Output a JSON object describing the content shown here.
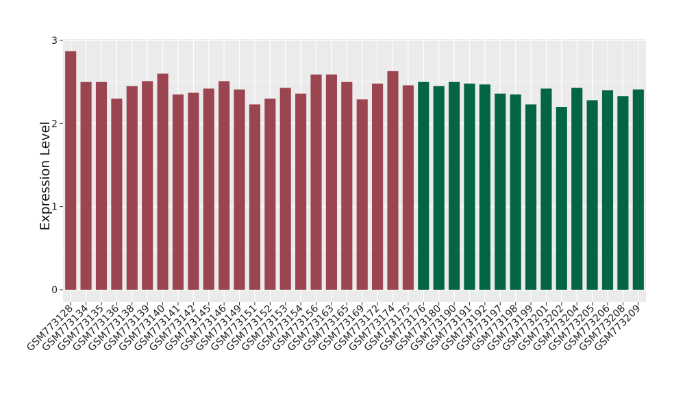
{
  "chart_data": {
    "type": "bar",
    "title": "",
    "xlabel": "",
    "ylabel": "Expression Level",
    "ylim": [
      0,
      3
    ],
    "yticks": [
      "0",
      "1",
      "2",
      "3"
    ],
    "grid": true,
    "categories": [
      "GSM773128",
      "GSM773134",
      "GSM773135",
      "GSM773136",
      "GSM773138",
      "GSM773139",
      "GSM773140",
      "GSM773141",
      "GSM773142",
      "GSM773145",
      "GSM773146",
      "GSM773149",
      "GSM773151",
      "GSM773152",
      "GSM773153",
      "GSM773154",
      "GSM773156",
      "GSM773163",
      "GSM773165",
      "GSM773169",
      "GSM773172",
      "GSM773174",
      "GSM773175",
      "GSM773176",
      "GSM773180",
      "GSM773190",
      "GSM773191",
      "GSM773192",
      "GSM773197",
      "GSM773198",
      "GSM773199",
      "GSM773201",
      "GSM773202",
      "GSM773204",
      "GSM773205",
      "GSM773206",
      "GSM773208",
      "GSM773209"
    ],
    "values": [
      2.87,
      2.5,
      2.5,
      2.3,
      2.45,
      2.51,
      2.6,
      2.35,
      2.37,
      2.42,
      2.51,
      2.41,
      2.23,
      2.3,
      2.43,
      2.36,
      2.59,
      2.59,
      2.5,
      2.29,
      2.48,
      2.63,
      2.46,
      2.5,
      2.45,
      2.5,
      2.48,
      2.47,
      2.36,
      2.35,
      2.23,
      2.42,
      2.2,
      2.43,
      2.28,
      2.4,
      2.33,
      2.41
    ],
    "groups": [
      23,
      15
    ],
    "colors": [
      "#9B4551",
      "#036545"
    ],
    "panel_color": "#EBEBEB",
    "grid_color": "#FFFFFF"
  }
}
